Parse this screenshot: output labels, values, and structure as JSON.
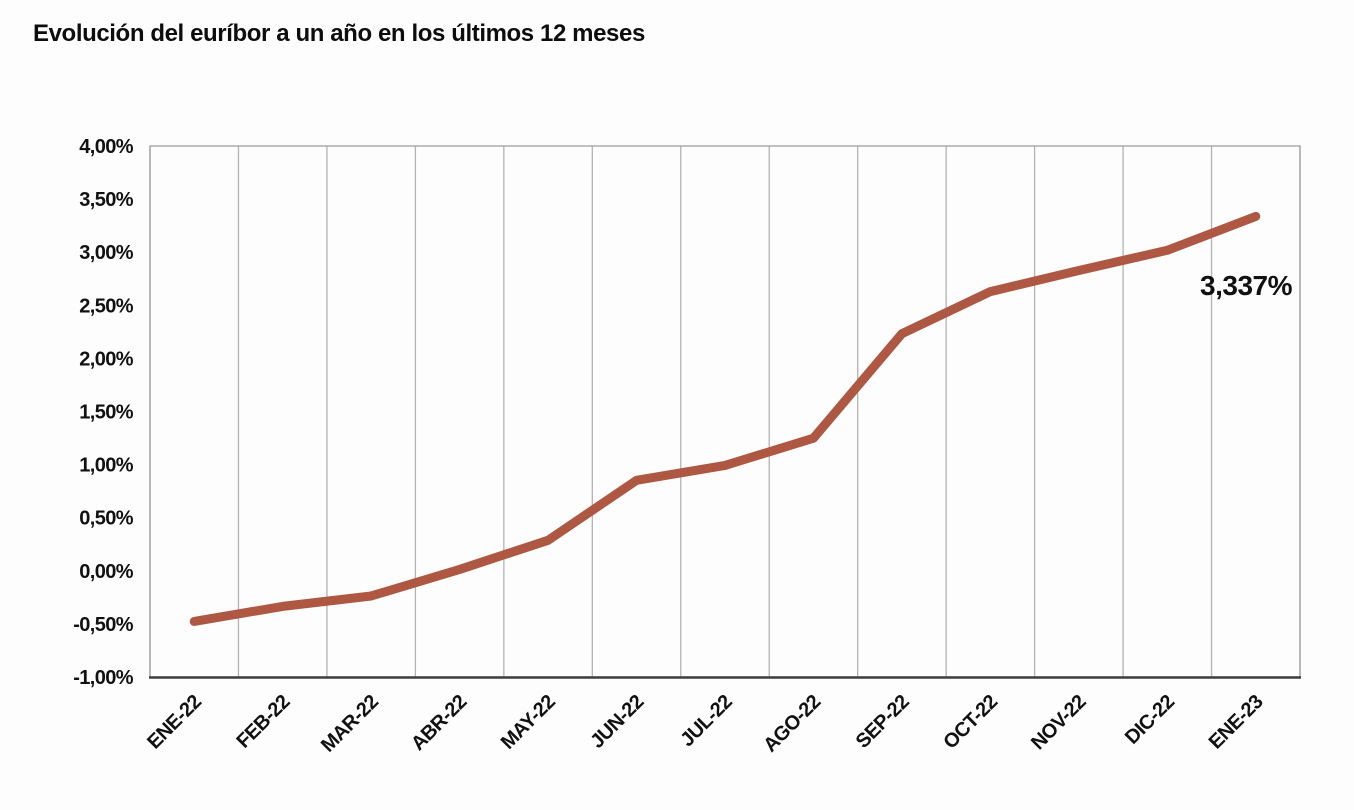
{
  "title": "Evolución del euríbor a un año en los últimos 12 meses",
  "colors": {
    "line": "#ae5742",
    "grid": "#b3b3b3",
    "plot_border": "#a0a0a0",
    "x_axis": "#3f3f3f",
    "text": "#111111",
    "background": "#fdfdfd"
  },
  "chart_data": {
    "type": "line",
    "title": "Evolución del euríbor a un año en los últimos 12 meses",
    "categories": [
      "ENE-22",
      "FEB-22",
      "MAR-22",
      "ABR-22",
      "MAY-22",
      "JUN-22",
      "JUL-22",
      "AGO-22",
      "SEP-22",
      "OCT-22",
      "NOV-22",
      "DIC-22",
      "ENE-23"
    ],
    "values": [
      -0.477,
      -0.335,
      -0.237,
      0.013,
      0.287,
      0.852,
      0.992,
      1.249,
      2.233,
      2.629,
      2.828,
      3.018,
      3.337
    ],
    "xlabel": "",
    "ylabel": "",
    "ylim": [
      -1.0,
      4.0
    ],
    "ytick_step": 0.5,
    "ytick_labels": [
      "4,00%",
      "3,50%",
      "3,00%",
      "2,50%",
      "2,00%",
      "1,50%",
      "1,00%",
      "0,50%",
      "0,00%",
      "-0,50%",
      "-1,00%"
    ],
    "grid": "vertical-only",
    "legend": "none",
    "annotation": {
      "text": "3,337%",
      "category": "ENE-23",
      "value": 3.337
    }
  }
}
